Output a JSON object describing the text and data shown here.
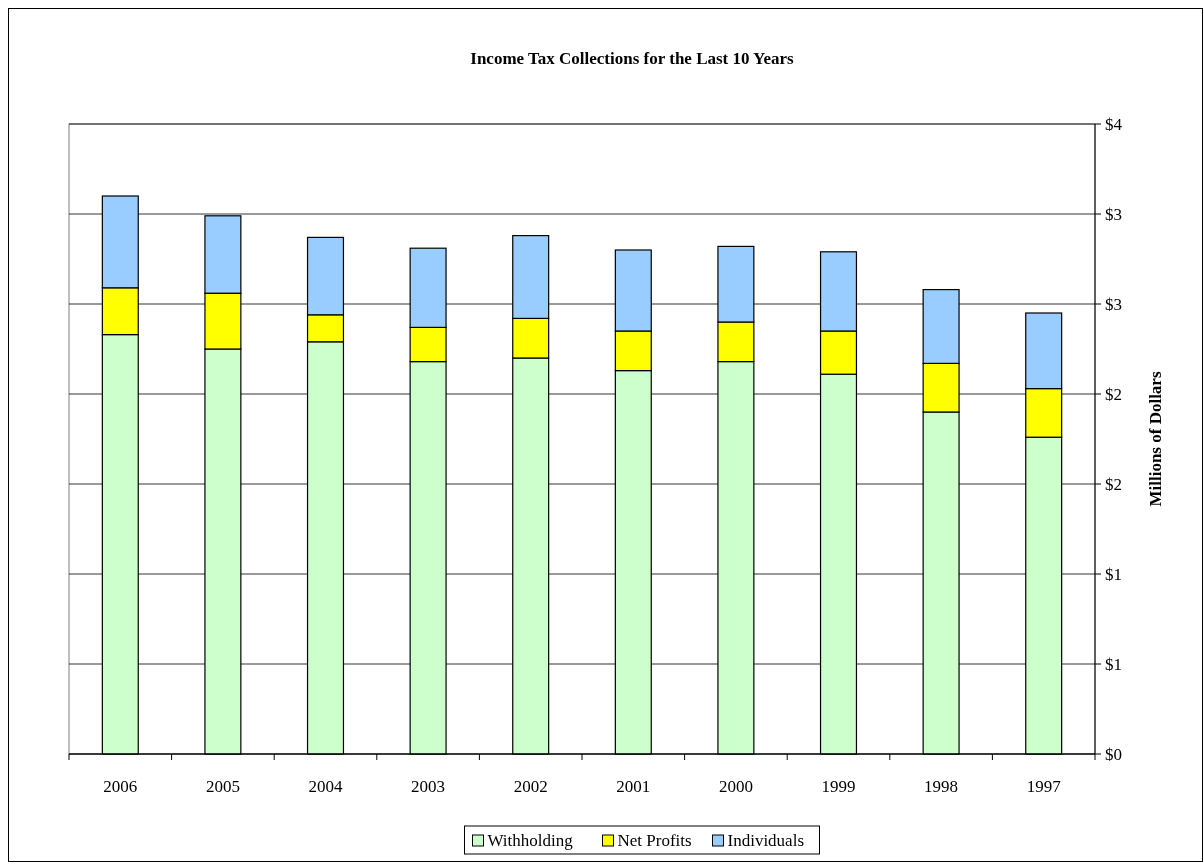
{
  "chart_data": {
    "type": "bar",
    "title": "Income Tax Collections for the Last 10 Years",
    "ylabel": "Millions of Dollars",
    "categories": [
      "2006",
      "2005",
      "2004",
      "2003",
      "2002",
      "2001",
      "2000",
      "1999",
      "1998",
      "1997"
    ],
    "stacked": true,
    "series": [
      {
        "name": "Withholding",
        "color": "#ccffcc",
        "values": [
          2.33,
          2.25,
          2.29,
          2.18,
          2.2,
          2.13,
          2.18,
          2.11,
          1.9,
          1.76
        ]
      },
      {
        "name": "Net Profits",
        "color": "#ffff00",
        "values": [
          0.26,
          0.31,
          0.15,
          0.19,
          0.22,
          0.22,
          0.22,
          0.24,
          0.27,
          0.27
        ]
      },
      {
        "name": "Individuals",
        "color": "#99ccff",
        "values": [
          0.51,
          0.43,
          0.43,
          0.44,
          0.46,
          0.45,
          0.42,
          0.44,
          0.41,
          0.42
        ]
      }
    ],
    "ylim": [
      0,
      3.5
    ],
    "yticks": [
      {
        "value": 0,
        "label": "$0"
      },
      {
        "value": 0.5,
        "label": "$1"
      },
      {
        "value": 1,
        "label": "$1"
      },
      {
        "value": 1.5,
        "label": "$2"
      },
      {
        "value": 2,
        "label": "$2"
      },
      {
        "value": 2.5,
        "label": "$3"
      },
      {
        "value": 3,
        "label": "$3"
      },
      {
        "value": 3.5,
        "label": "$4"
      }
    ],
    "grid": "y",
    "legend": "bottom"
  }
}
